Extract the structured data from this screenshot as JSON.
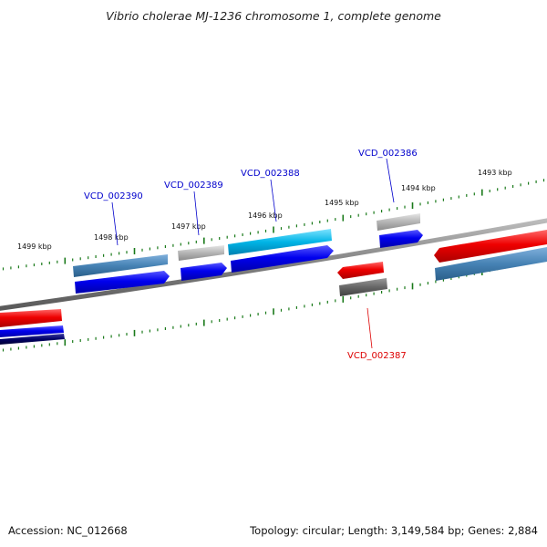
{
  "title": "Vibrio cholerae MJ-1236 chromosome 1, complete genome",
  "scale": {
    "labels": [
      "1499 kbp",
      "1498 kbp",
      "1497 kbp",
      "1496 kbp",
      "1495 kbp",
      "1494 kbp",
      "1493 kbp"
    ]
  },
  "genes": [
    {
      "id": "VCD_002390",
      "color": "#0000cc"
    },
    {
      "id": "VCD_002389",
      "color": "#0000cc"
    },
    {
      "id": "VCD_002388",
      "color": "#0000cc"
    },
    {
      "id": "VCD_002387",
      "color": "#dd0000"
    },
    {
      "id": "VCD_002386",
      "color": "#0000cc"
    }
  ],
  "colors": {
    "scale_ticks": "#1a7a1a",
    "backbone": "#7f7f7f",
    "forward": "#0000ee",
    "reverse": "#ee0000",
    "steelblue": "#4682b4",
    "cyan": "#00aadd",
    "gray": "#b0b0b0",
    "darkgray": "#666666",
    "navy": "#000066"
  },
  "footer": {
    "accession": "Accession: NC_012668",
    "info": "Topology: circular; Length: 3,149,584 bp; Genes: 2,884"
  }
}
